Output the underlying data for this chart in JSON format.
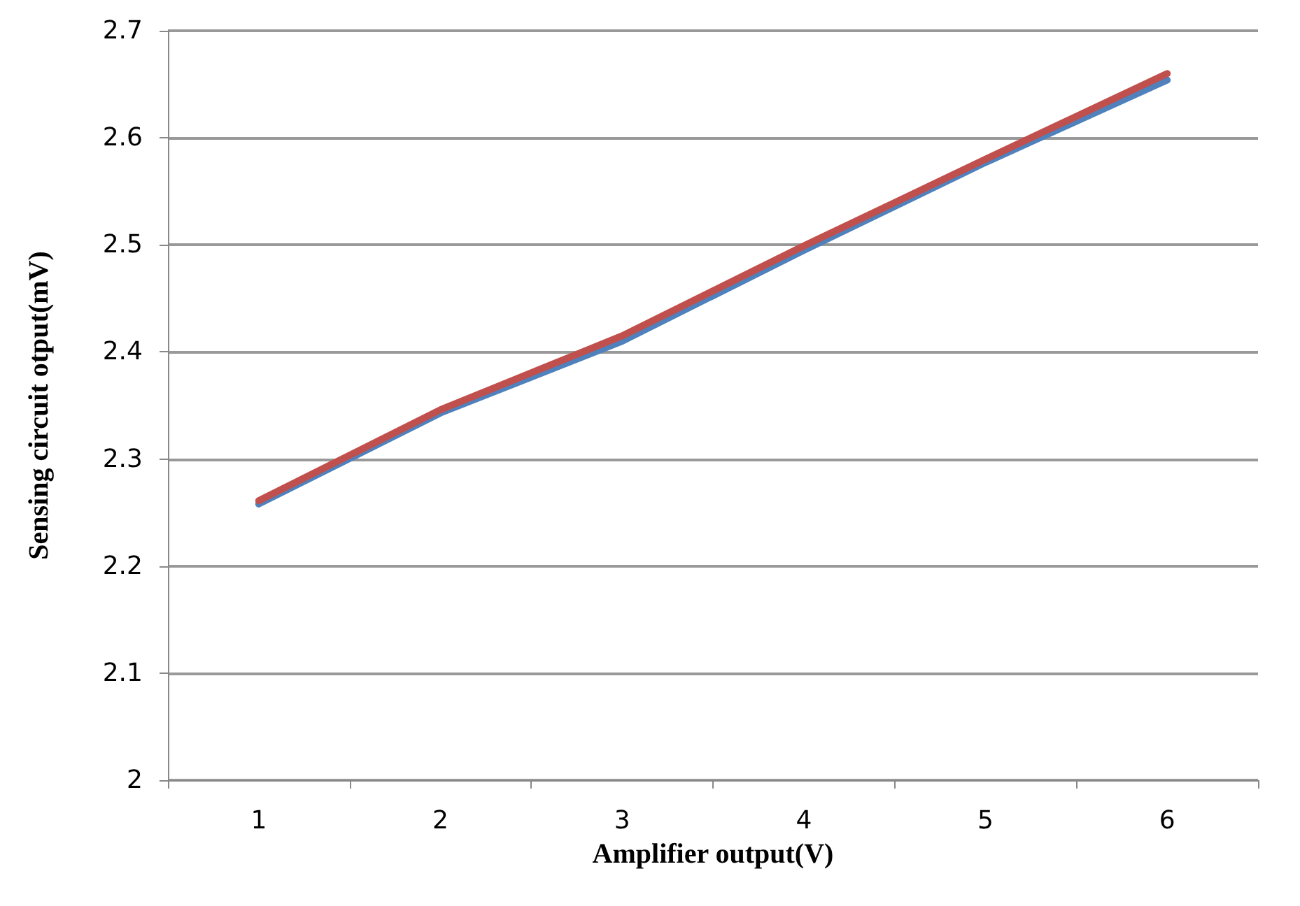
{
  "chart_data": {
    "type": "line",
    "xlabel": "Amplifier output(V)",
    "ylabel": "Sensing circuit otput(mV)",
    "categories": [
      "1",
      "2",
      "3",
      "4",
      "5",
      "6"
    ],
    "series": [
      {
        "color": "#4f81bd",
        "values": [
          2.258,
          2.343,
          2.41,
          2.495,
          2.577,
          2.654
        ]
      },
      {
        "color": "#c0504d",
        "values": [
          2.261,
          2.346,
          2.415,
          2.499,
          2.58,
          2.66
        ]
      }
    ],
    "ylim": [
      2,
      2.7
    ],
    "yticks": [
      2,
      2.1,
      2.2,
      2.3,
      2.4,
      2.5,
      2.6,
      2.7
    ],
    "grid": "y",
    "marker": "none",
    "line_style": "solid"
  }
}
